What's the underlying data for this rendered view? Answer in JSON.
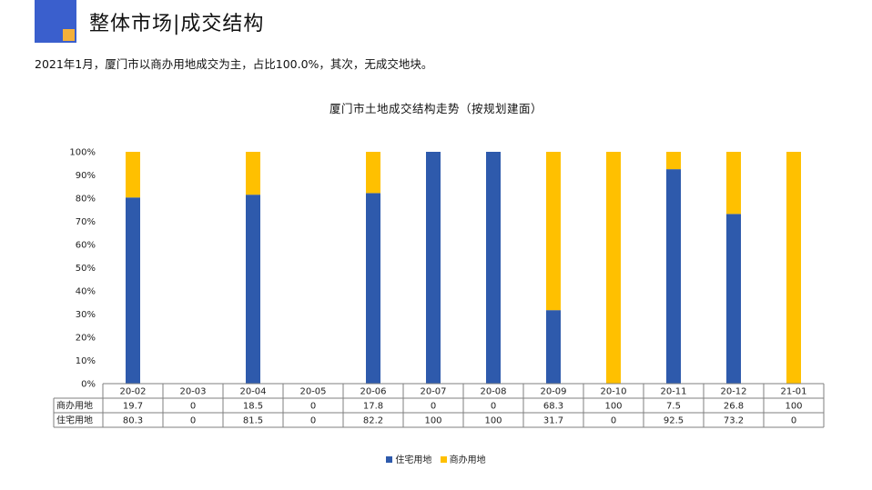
{
  "header": {
    "title": "整体市场|成交结构",
    "summary": "2021年1月，厦门市以商办用地成交为主，占比100.0%，其次，无成交地块。"
  },
  "chart_data": {
    "type": "bar",
    "stacked": true,
    "percent": true,
    "title": "厦门市土地成交结构走势（按规划建面）",
    "categories": [
      "20-02",
      "20-03",
      "20-04",
      "20-05",
      "20-06",
      "20-07",
      "20-08",
      "20-09",
      "20-10",
      "20-11",
      "20-12",
      "21-01"
    ],
    "series": [
      {
        "name": "住宅用地",
        "color": "#2e5aac",
        "values": [
          80.3,
          0,
          81.5,
          0,
          82.2,
          100,
          100,
          31.7,
          0,
          92.5,
          73.2,
          0
        ]
      },
      {
        "name": "商办用地",
        "color": "#ffc000",
        "values": [
          19.7,
          0,
          18.5,
          0,
          17.8,
          0,
          0,
          68.3,
          100,
          7.5,
          26.8,
          100
        ]
      }
    ],
    "table_rows": [
      {
        "label": "商办用地",
        "values": [
          "19.7",
          "0",
          "18.5",
          "0",
          "17.8",
          "0",
          "0",
          "68.3",
          "100",
          "7.5",
          "26.8",
          "100"
        ]
      },
      {
        "label": "住宅用地",
        "values": [
          "80.3",
          "0",
          "81.5",
          "0",
          "82.2",
          "100",
          "100",
          "31.7",
          "0",
          "92.5",
          "73.2",
          "0"
        ]
      }
    ],
    "yticks": [
      "0%",
      "10%",
      "20%",
      "30%",
      "40%",
      "50%",
      "60%",
      "70%",
      "80%",
      "90%",
      "100%"
    ],
    "ylim": [
      0,
      100
    ],
    "grid": false,
    "legend_position": "bottom"
  }
}
